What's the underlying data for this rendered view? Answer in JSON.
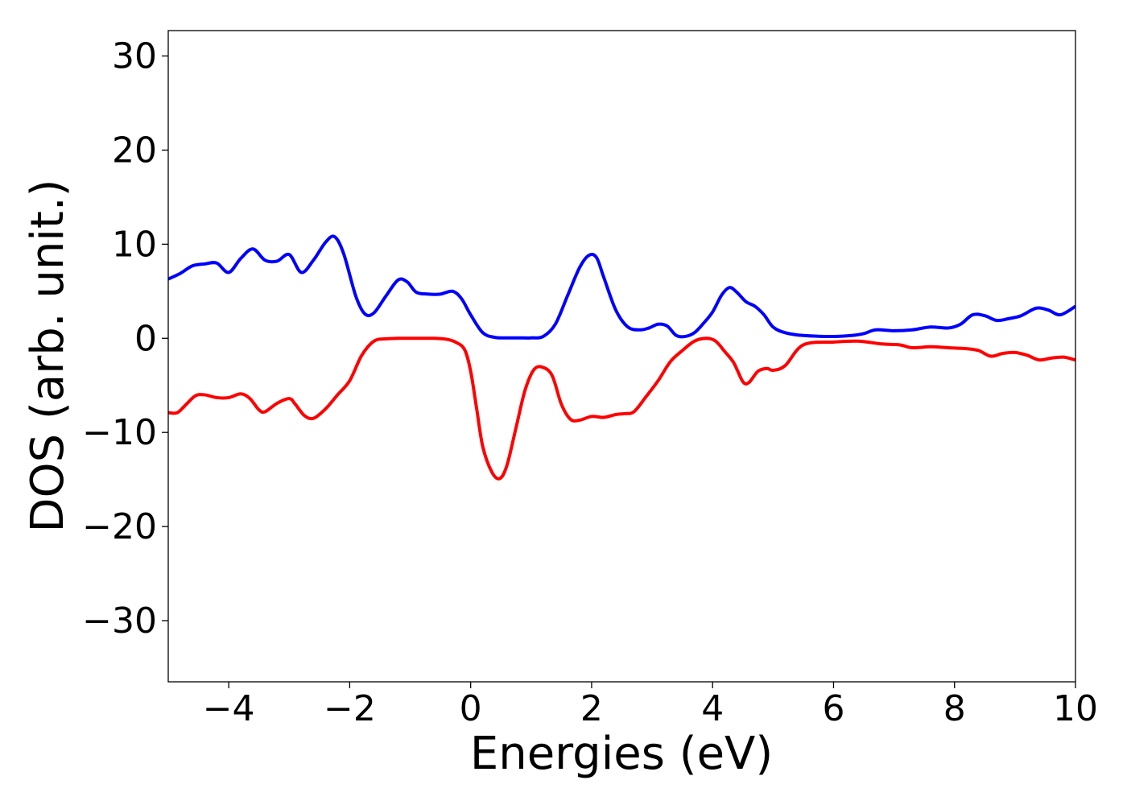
{
  "chart_data": {
    "type": "line",
    "xlabel": "Energies (eV)",
    "ylabel": "DOS (arb. unit.)",
    "xlim": [
      -5,
      10
    ],
    "ylim": [
      -36.5,
      32.7
    ],
    "xticks": [
      -4,
      -2,
      0,
      2,
      4,
      6,
      8,
      10
    ],
    "yticks": [
      -30,
      -20,
      -10,
      0,
      10,
      20,
      30
    ],
    "xtick_labels": [
      "−4",
      "−2",
      "0",
      "2",
      "4",
      "6",
      "8",
      "10"
    ],
    "ytick_labels": [
      "−30",
      "−20",
      "−10",
      "0",
      "10",
      "20",
      "30"
    ],
    "grid": false,
    "legend": "none",
    "series": [
      {
        "color": "#0000ff",
        "x": [
          -5.0,
          -4.8,
          -4.6,
          -4.4,
          -4.2,
          -4.0,
          -3.8,
          -3.6,
          -3.4,
          -3.2,
          -3.0,
          -2.8,
          -2.6,
          -2.4,
          -2.25,
          -2.1,
          -1.9,
          -1.75,
          -1.6,
          -1.4,
          -1.2,
          -1.05,
          -0.9,
          -0.7,
          -0.5,
          -0.3,
          -0.15,
          0.0,
          0.2,
          0.4,
          0.6,
          0.8,
          1.0,
          1.2,
          1.4,
          1.6,
          1.8,
          1.95,
          2.08,
          2.2,
          2.4,
          2.6,
          2.8,
          2.95,
          3.1,
          3.25,
          3.4,
          3.55,
          3.7,
          3.85,
          4.0,
          4.15,
          4.28,
          4.4,
          4.55,
          4.7,
          4.85,
          5.0,
          5.2,
          5.5,
          6.0,
          6.3,
          6.5,
          6.7,
          7.0,
          7.3,
          7.6,
          7.9,
          8.1,
          8.3,
          8.5,
          8.7,
          8.9,
          9.1,
          9.35,
          9.55,
          9.75,
          10.0
        ],
        "y": [
          6.3,
          6.9,
          7.7,
          7.9,
          8.0,
          7.0,
          8.5,
          9.5,
          8.3,
          8.2,
          8.9,
          7.0,
          8.3,
          10.2,
          10.8,
          9.0,
          4.5,
          2.6,
          2.7,
          4.5,
          6.2,
          6.0,
          4.9,
          4.7,
          4.7,
          5.0,
          4.2,
          2.5,
          0.6,
          0.1,
          0.05,
          0.05,
          0.05,
          0.2,
          1.5,
          4.5,
          7.5,
          8.8,
          8.6,
          6.5,
          3.0,
          1.2,
          0.9,
          1.1,
          1.5,
          1.3,
          0.3,
          0.2,
          0.6,
          1.6,
          2.8,
          4.6,
          5.4,
          4.9,
          3.9,
          3.4,
          2.5,
          1.2,
          0.6,
          0.3,
          0.2,
          0.3,
          0.5,
          0.9,
          0.8,
          0.9,
          1.2,
          1.1,
          1.5,
          2.5,
          2.4,
          1.9,
          2.1,
          2.4,
          3.2,
          3.0,
          2.5,
          3.4
        ]
      },
      {
        "color": "#ff0000",
        "x": [
          -5.0,
          -4.85,
          -4.7,
          -4.55,
          -4.4,
          -4.2,
          -4.0,
          -3.8,
          -3.65,
          -3.5,
          -3.4,
          -3.2,
          -3.0,
          -2.9,
          -2.75,
          -2.6,
          -2.4,
          -2.2,
          -2.0,
          -1.8,
          -1.6,
          -1.4,
          -1.2,
          -1.0,
          -0.8,
          -0.6,
          -0.4,
          -0.25,
          -0.1,
          0.0,
          0.1,
          0.2,
          0.35,
          0.48,
          0.6,
          0.75,
          0.9,
          1.05,
          1.2,
          1.35,
          1.5,
          1.65,
          1.8,
          2.0,
          2.2,
          2.4,
          2.55,
          2.7,
          2.9,
          3.1,
          3.3,
          3.5,
          3.7,
          3.9,
          4.05,
          4.2,
          4.35,
          4.5,
          4.6,
          4.75,
          4.9,
          5.0,
          5.2,
          5.5,
          6.0,
          6.4,
          6.8,
          7.1,
          7.3,
          7.6,
          7.9,
          8.2,
          8.4,
          8.6,
          8.8,
          9.0,
          9.2,
          9.4,
          9.6,
          9.8,
          10.0
        ],
        "y": [
          -7.9,
          -7.9,
          -7.0,
          -6.1,
          -6.0,
          -6.3,
          -6.3,
          -5.9,
          -6.4,
          -7.6,
          -7.8,
          -6.9,
          -6.4,
          -7.0,
          -8.2,
          -8.5,
          -7.5,
          -6.0,
          -4.5,
          -1.8,
          -0.3,
          -0.05,
          0.0,
          0.0,
          0.0,
          0.0,
          -0.1,
          -0.4,
          -1.2,
          -3.5,
          -7.5,
          -11.5,
          -14.2,
          -14.9,
          -13.5,
          -9.5,
          -5.5,
          -3.3,
          -3.1,
          -4.0,
          -7.0,
          -8.6,
          -8.7,
          -8.3,
          -8.4,
          -8.1,
          -8.0,
          -7.8,
          -6.2,
          -4.5,
          -2.5,
          -1.3,
          -0.3,
          0.0,
          -0.3,
          -1.4,
          -2.6,
          -4.6,
          -4.7,
          -3.5,
          -3.2,
          -3.4,
          -2.9,
          -0.7,
          -0.4,
          -0.3,
          -0.6,
          -0.7,
          -1.0,
          -0.9,
          -1.0,
          -1.1,
          -1.3,
          -1.9,
          -1.6,
          -1.5,
          -1.8,
          -2.3,
          -2.1,
          -2.0,
          -2.3
        ]
      }
    ]
  }
}
